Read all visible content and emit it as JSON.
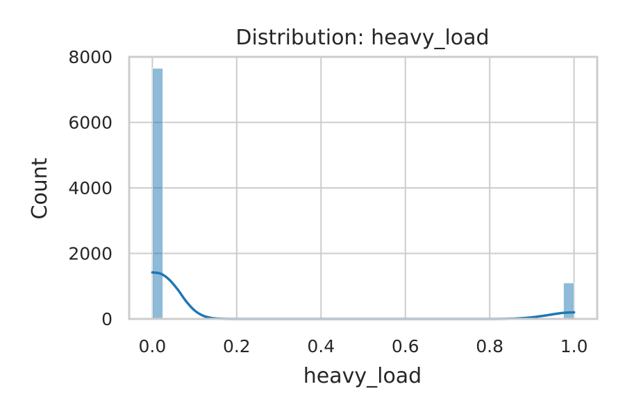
{
  "chart_data": {
    "type": "histogram",
    "title": "Distribution: heavy_load",
    "xlabel": "heavy_load",
    "ylabel": "Count",
    "xlim": [
      -0.055,
      1.055
    ],
    "ylim": [
      0,
      8000
    ],
    "xticks": [
      0.0,
      0.2,
      0.4,
      0.6,
      0.8,
      1.0
    ],
    "xtick_labels": [
      "0.0",
      "0.2",
      "0.4",
      "0.6",
      "0.8",
      "1.0"
    ],
    "yticks": [
      0,
      2000,
      4000,
      6000,
      8000
    ],
    "ytick_labels": [
      "0",
      "2000",
      "4000",
      "6000",
      "8000"
    ],
    "grid": true,
    "bars": [
      {
        "x0": 0.0,
        "x1": 0.025,
        "count": 7650
      },
      {
        "x0": 0.975,
        "x1": 1.0,
        "count": 1100
      }
    ],
    "kde": {
      "x": [
        0.0,
        0.02,
        0.04,
        0.06,
        0.08,
        0.1,
        0.12,
        0.14,
        0.16,
        0.2,
        0.4,
        0.6,
        0.8,
        0.86,
        0.9,
        0.94,
        0.97,
        1.0
      ],
      "y": [
        1420,
        1380,
        1200,
        900,
        540,
        260,
        100,
        30,
        8,
        0,
        0,
        0,
        0,
        10,
        50,
        120,
        180,
        200
      ]
    },
    "colors": {
      "series": "#1f77b4",
      "grid": "#cccccc",
      "text": "#262626"
    }
  }
}
